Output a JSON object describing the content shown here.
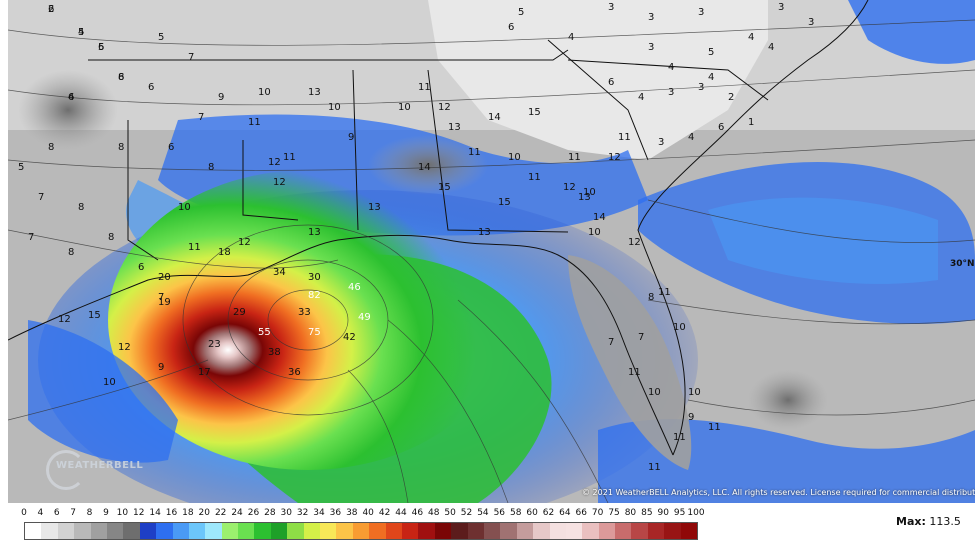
{
  "map": {
    "copyright": "© 2021 WeatherBELL Analytics, LLC. All rights reserved. License required for commercial distribution.",
    "lat_label": "30°N",
    "logo_text": "WEATHERBELL",
    "numbers": [
      "6",
      "5",
      "6",
      "6",
      "8",
      "5",
      "7",
      "7",
      "6",
      "8",
      "5",
      "7",
      "8",
      "7",
      "8",
      "8",
      "6",
      "7",
      "8",
      "6",
      "8",
      "9",
      "10",
      "11",
      "11",
      "13",
      "12",
      "12",
      "10",
      "9",
      "10",
      "11",
      "12",
      "13",
      "14",
      "15",
      "15",
      "14",
      "13",
      "13",
      "12",
      "11",
      "10",
      "11",
      "10",
      "11",
      "12",
      "13",
      "14",
      "15",
      "13",
      "18",
      "20",
      "29",
      "34",
      "30",
      "46",
      "49",
      "42",
      "75",
      "55",
      "38",
      "36",
      "33",
      "82",
      "19",
      "15",
      "12",
      "23",
      "17",
      "12",
      "10",
      "9",
      "11",
      "8",
      "7",
      "7",
      "10",
      "11",
      "11",
      "10",
      "12",
      "11",
      "11",
      "10",
      "12",
      "11",
      "10",
      "10",
      "9",
      "11",
      "6",
      "5",
      "4",
      "3",
      "3",
      "3",
      "3",
      "3",
      "4",
      "4",
      "5",
      "4",
      "3",
      "4",
      "6",
      "3",
      "4",
      "3",
      "2",
      "1",
      "6",
      "4",
      "3",
      "2",
      "4",
      "4",
      "5",
      "6"
    ],
    "icons": {
      "logo": "weatherbell-logo-icon"
    }
  },
  "legend": {
    "ticks": [
      "0",
      "4",
      "6",
      "7",
      "8",
      "9",
      "10",
      "12",
      "14",
      "16",
      "18",
      "20",
      "22",
      "24",
      "26",
      "28",
      "30",
      "32",
      "34",
      "36",
      "38",
      "40",
      "42",
      "44",
      "46",
      "48",
      "50",
      "52",
      "54",
      "56",
      "58",
      "60",
      "62",
      "64",
      "66",
      "70",
      "75",
      "80",
      "85",
      "90",
      "95",
      "100"
    ],
    "colors": [
      "#ffffff",
      "#e8e8e8",
      "#d2d2d2",
      "#b9b9b9",
      "#a0a0a0",
      "#868686",
      "#6e6e6e",
      "#1e3fc6",
      "#2e6ff0",
      "#4a9af5",
      "#6cc6fa",
      "#9ee8fc",
      "#9cf06e",
      "#6ae050",
      "#2cc030",
      "#1ea028",
      "#8ede46",
      "#d4f048",
      "#f8e858",
      "#fcc448",
      "#f89c32",
      "#f06e22",
      "#e0461a",
      "#c82414",
      "#a01010",
      "#7a0606",
      "#5c1c1c",
      "#6e3030",
      "#845050",
      "#a07272",
      "#c49c9c",
      "#e6c8c8",
      "#f4e0e0",
      "#f6e2e2",
      "#eac0c0",
      "#dc9a9a",
      "#c86c6c",
      "#b84646",
      "#a82626",
      "#981414",
      "#900808"
    ],
    "max_label": "Max:",
    "max_value": "113.5"
  }
}
